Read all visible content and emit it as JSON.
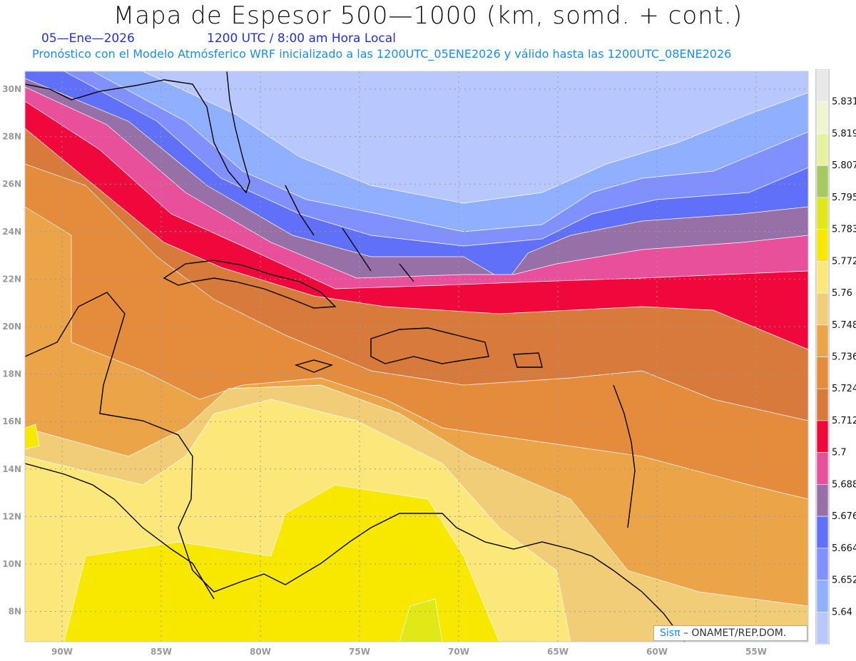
{
  "header": {
    "title": "Mapa de Espesor 500—1000 (km, somd. + cont.)",
    "date": "05—Ene—2026",
    "time": "1200 UTC / 8:00 am Hora Local",
    "subtitle": "Pronóstico con el Modelo Atmósferico WRF inicializado a las 1200UTC_05ENE2026 y válido hasta las  1200UTC_08ENE2026"
  },
  "map": {
    "lat_labels": [
      "30N",
      "28N",
      "26N",
      "24N",
      "22N",
      "20N",
      "18N",
      "16N",
      "14N",
      "12N",
      "10N",
      "8N"
    ],
    "lon_labels": [
      "90W",
      "85W",
      "80W",
      "75W",
      "70W",
      "65W",
      "60W",
      "55W"
    ]
  },
  "colorbar": {
    "labels": [
      "5.831",
      "5.819",
      "5.807",
      "5.795",
      "5.783",
      "5.772",
      "5.76",
      "5.748",
      "5.736",
      "5.724",
      "5.712",
      "5.7",
      "5.688",
      "5.676",
      "5.664",
      "5.652",
      "5.64"
    ],
    "colors": [
      "#e8e8e8",
      "#eef5d0",
      "#e6f2a0",
      "#a8c860",
      "#e0e818",
      "#f8e800",
      "#fce87a",
      "#f2cd78",
      "#eca448",
      "#e48c3c",
      "#d87a3c",
      "#f0083c",
      "#e8509c",
      "#9870a8",
      "#6070f8",
      "#8090ff",
      "#90b0ff",
      "#b8c8ff"
    ]
  },
  "credit": {
    "brand": "Sisπ",
    "text": "– ONAMET/REP.DOM."
  }
}
